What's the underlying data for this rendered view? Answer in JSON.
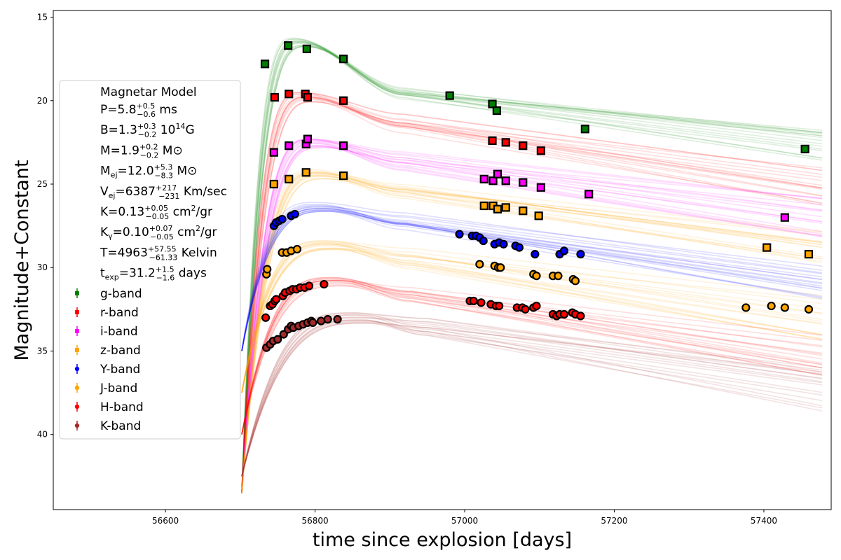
{
  "chart_data": {
    "type": "scatter",
    "xlabel": "time since explosion [days]",
    "ylabel": "Magnitude+Constant",
    "xlim": [
      56450,
      57490
    ],
    "ylim": [
      44.5,
      14.6
    ],
    "y_inverted": true,
    "xticks": [
      56600,
      56800,
      57000,
      57200,
      57400
    ],
    "yticks": [
      15,
      20,
      25,
      30,
      35,
      40
    ],
    "legend_position": "left",
    "model_params": {
      "title": "Magnetar Model",
      "P": {
        "label": "P",
        "value": "5.8",
        "plus": "+0.5",
        "minus": "−0.6",
        "unit": " ms"
      },
      "B": {
        "label": "B",
        "value": "1.3",
        "plus": "+0.3",
        "minus": "−0.2",
        "unit_pre": " 10",
        "unit_sup": "14",
        "unit_post": "G"
      },
      "M": {
        "label": "M",
        "value": "1.9",
        "plus": "+0.2",
        "minus": "−0.2",
        "unit": " M⊙"
      },
      "Mej": {
        "label": "M",
        "label_sub": "ej",
        "value": "12.0",
        "plus": "+5.3",
        "minus": "−8.3",
        "unit": " M⊙"
      },
      "Vej": {
        "label": "V",
        "label_sub": "ej",
        "value": "6387",
        "plus": "+217",
        "minus": "−231",
        "unit": " Km/sec"
      },
      "K": {
        "label": "K",
        "value": "0.13",
        "plus": "+0.05",
        "minus": "−0.05",
        "unit_pre": " cm",
        "unit_sup": "2",
        "unit_post": "/gr"
      },
      "Kg": {
        "label": "K",
        "label_sub": "γ",
        "value": "0.10",
        "plus": "+0.07",
        "minus": "−0.05",
        "unit_pre": " cm",
        "unit_sup": "2",
        "unit_post": "/gr"
      },
      "T": {
        "label": "T",
        "value": "4963",
        "plus": "+57.55",
        "minus": "−61.33",
        "unit": " Kelvin"
      },
      "texp": {
        "label": "t",
        "label_sub": "exp",
        "value": "31.2",
        "plus": "+1.5",
        "minus": "−1.6",
        "unit": " days"
      }
    },
    "model_curves": {
      "explosion_day": 56702,
      "description_shape": "rise then linear decline",
      "samples": 16
    },
    "series": [
      {
        "name": "g-band",
        "color": "#008000",
        "marker": "square",
        "curve": {
          "start": 43.5,
          "peak": 16.5,
          "peak_t": 56780,
          "knee_t": 56920,
          "knee": 19.6,
          "end": 22.8,
          "spread": 0.7
        },
        "x": [
          56733,
          56764,
          56789,
          56838,
          56980,
          57037,
          57043,
          57161,
          57455
        ],
        "y": [
          17.8,
          16.7,
          16.9,
          17.5,
          19.7,
          20.2,
          20.6,
          21.7,
          22.9
        ]
      },
      {
        "name": "r-band",
        "color": "#ff0000",
        "marker": "square",
        "curve": {
          "start": 43.5,
          "peak": 19.8,
          "peak_t": 56790,
          "knee_t": 56920,
          "knee": 21.4,
          "end": 25.2,
          "spread": 0.8
        },
        "x": [
          56746,
          56765,
          56787,
          56790,
          56838,
          57037,
          57055,
          57078,
          57102
        ],
        "y": [
          19.8,
          19.6,
          19.6,
          19.8,
          20.0,
          22.4,
          22.5,
          22.7,
          23.0
        ]
      },
      {
        "name": "i-band",
        "color": "#ff00ff",
        "marker": "square",
        "curve": {
          "start": 43.5,
          "peak": 22.5,
          "peak_t": 56800,
          "knee_t": 56920,
          "knee": 23.6,
          "end": 27.0,
          "spread": 0.8
        },
        "x": [
          56745,
          56765,
          56788,
          56790,
          56838,
          57026,
          57038,
          57044,
          57055,
          57078,
          57102,
          57166,
          57428
        ],
        "y": [
          23.1,
          22.7,
          22.6,
          22.3,
          22.7,
          24.7,
          24.8,
          24.4,
          24.8,
          24.9,
          25.2,
          25.6,
          27.0
        ]
      },
      {
        "name": "z-band",
        "color": "#ffa500",
        "marker": "square",
        "curve": {
          "start": 43.5,
          "peak": 24.4,
          "peak_t": 56805,
          "knee_t": 56920,
          "knee": 25.4,
          "end": 28.8,
          "spread": 0.8
        },
        "x": [
          56745,
          56765,
          56788,
          56838,
          57026,
          57038,
          57044,
          57055,
          57078,
          57099,
          57404,
          57460
        ],
        "y": [
          25.0,
          24.7,
          24.3,
          24.5,
          26.3,
          26.3,
          26.5,
          26.4,
          26.6,
          26.9,
          28.8,
          29.2
        ]
      },
      {
        "name": "Y-band",
        "color": "#0000ff",
        "marker": "circle",
        "curve": {
          "start": 35.0,
          "peak": 26.4,
          "peak_t": 56810,
          "knee_t": 56920,
          "knee": 27.2,
          "end": 30.8,
          "spread": 0.8
        },
        "x": [
          56745,
          56748,
          56752,
          56756,
          56768,
          56773,
          56993,
          57010,
          57015,
          57020,
          57025,
          57040,
          57046,
          57052,
          57068,
          57073,
          57094,
          57127,
          57133,
          57155
        ],
        "y": [
          27.5,
          27.3,
          27.2,
          27.1,
          26.9,
          26.8,
          28.0,
          28.1,
          28.1,
          28.2,
          28.4,
          28.6,
          28.5,
          28.6,
          28.7,
          28.8,
          29.2,
          29.2,
          29.0,
          29.2
        ]
      },
      {
        "name": "J-band",
        "color": "#ffa500",
        "marker": "circle",
        "curve": {
          "start": 37.5,
          "peak": 28.6,
          "peak_t": 56820,
          "knee_t": 56930,
          "knee": 29.4,
          "end": 33.0,
          "spread": 0.9
        },
        "x": [
          56735,
          56736,
          56756,
          56762,
          56768,
          56776,
          57020,
          57040,
          57045,
          57048,
          57092,
          57096,
          57118,
          57125,
          57145,
          57148,
          57376,
          57410,
          57428,
          57460
        ],
        "y": [
          30.4,
          30.1,
          29.1,
          29.1,
          29.0,
          28.9,
          29.8,
          29.9,
          30.0,
          30.0,
          30.4,
          30.5,
          30.5,
          30.5,
          30.7,
          30.8,
          32.4,
          32.3,
          32.4,
          32.5
        ]
      },
      {
        "name": "H-band",
        "color": "#ff0000",
        "marker": "circle",
        "curve": {
          "start": 40.0,
          "peak": 30.8,
          "peak_t": 56830,
          "knee_t": 56930,
          "knee": 31.6,
          "end": 35.3,
          "spread": 0.9
        },
        "x": [
          56734,
          56740,
          56743,
          56746,
          56748,
          56757,
          56760,
          56766,
          56770,
          56775,
          56780,
          56786,
          56792,
          56812,
          57007,
          57012,
          57022,
          57035,
          57042,
          57046,
          57070,
          57077,
          57081,
          57092,
          57096,
          57118,
          57123,
          57127,
          57133,
          57144,
          57148,
          57155
        ],
        "y": [
          33.0,
          32.3,
          32.2,
          32.0,
          31.9,
          31.7,
          31.5,
          31.4,
          31.3,
          31.3,
          31.2,
          31.2,
          31.1,
          31.0,
          32.0,
          32.0,
          32.1,
          32.2,
          32.3,
          32.3,
          32.4,
          32.4,
          32.5,
          32.4,
          32.3,
          32.8,
          32.9,
          32.8,
          32.8,
          32.7,
          32.8,
          32.9
        ]
      },
      {
        "name": "K-band",
        "color": "#a52a2a",
        "marker": "circle",
        "curve": {
          "start": 42.5,
          "peak": 33.0,
          "peak_t": 56860,
          "knee_t": 56950,
          "knee": 33.6,
          "end": 37.3,
          "spread": 0.9
        },
        "x": [
          56735,
          56740,
          56744,
          56750,
          56758,
          56764,
          56768,
          56771,
          56778,
          56784,
          56790,
          56795,
          56797,
          56808,
          56817,
          56830
        ],
        "y": [
          34.8,
          34.6,
          34.4,
          34.3,
          34.0,
          33.7,
          33.5,
          33.6,
          33.5,
          33.4,
          33.3,
          33.2,
          33.3,
          33.2,
          33.1,
          33.1
        ]
      }
    ]
  }
}
